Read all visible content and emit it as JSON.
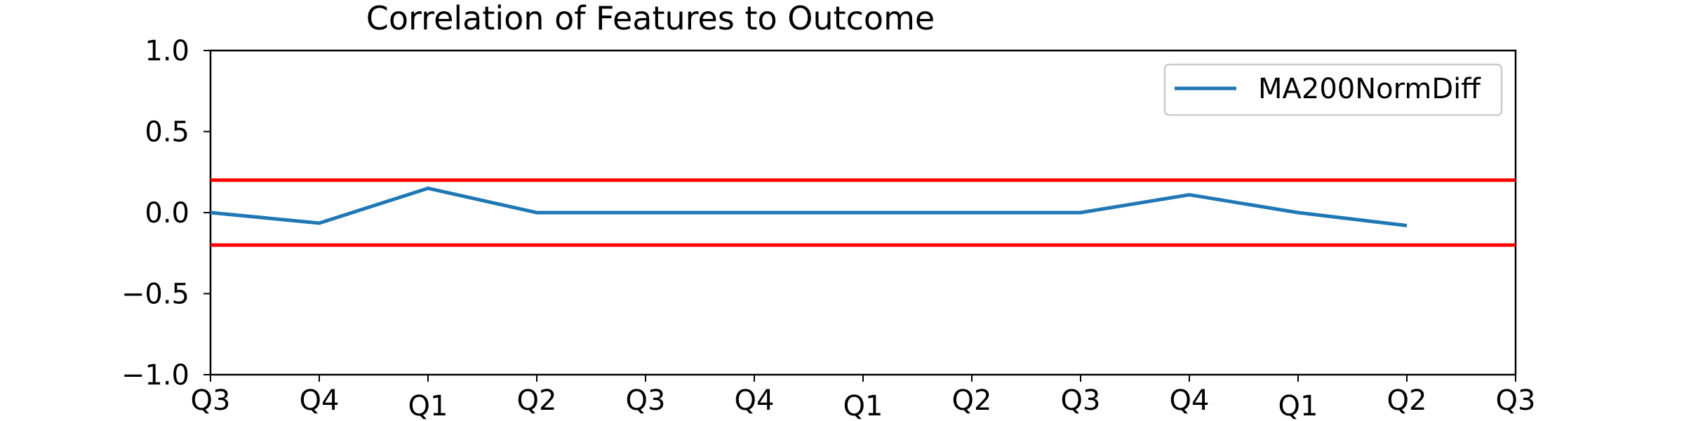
{
  "chart_data": {
    "type": "line",
    "title": "Correlation of Features to Outcome",
    "xlabel": "",
    "ylabel": "",
    "x_tick_labels": [
      "Q3",
      "Q4",
      "Q1",
      "Q2",
      "Q3",
      "Q4",
      "Q1",
      "Q2",
      "Q3",
      "Q4",
      "Q1",
      "Q2",
      "Q3"
    ],
    "ylim": [
      -1.0,
      1.0
    ],
    "y_ticks": [
      -1.0,
      -0.5,
      0.0,
      0.5,
      1.0
    ],
    "y_tick_labels": [
      "−1.0",
      "−0.5",
      "0.0",
      "0.5",
      "1.0"
    ],
    "series": [
      {
        "name": "MA200NormDiff",
        "color": "#1f77b4",
        "values": [
          0.0,
          -0.065,
          0.15,
          0.0,
          0.0,
          0.0,
          0.0,
          0.0,
          0.0,
          0.11,
          0.0,
          -0.08
        ]
      }
    ],
    "reference_lines": [
      {
        "y": 0.2,
        "color": "#ff0000"
      },
      {
        "y": -0.2,
        "color": "#ff0000"
      }
    ],
    "grid": false,
    "legend_position": "upper right"
  }
}
